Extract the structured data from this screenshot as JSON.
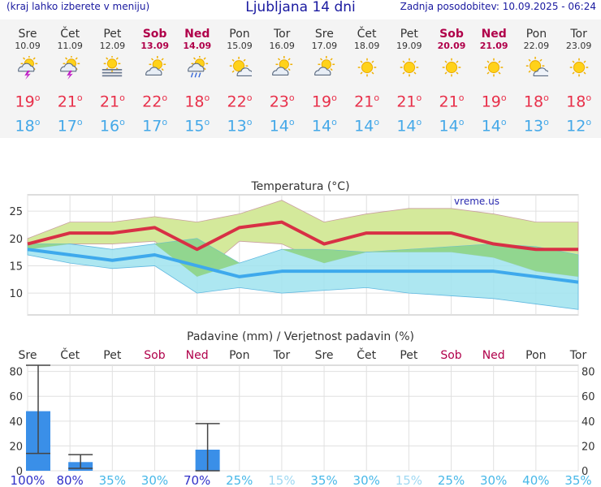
{
  "header": {
    "menu_hint": "(kraj lahko izberete v meniju)",
    "title": "Ljubljana 14 dni",
    "updated": "Zadnja posodobitev: 10.09.2025 - 06:24"
  },
  "days": [
    {
      "name": "Sre",
      "date": "10.09",
      "weekend": false,
      "icon": "thunderstorm-icon",
      "tmax": "19",
      "tmin": "18"
    },
    {
      "name": "Čet",
      "date": "11.09",
      "weekend": false,
      "icon": "thunderstorm-icon",
      "tmax": "21",
      "tmin": "17"
    },
    {
      "name": "Pet",
      "date": "12.09",
      "weekend": false,
      "icon": "fog-icon",
      "tmax": "21",
      "tmin": "16"
    },
    {
      "name": "Sob",
      "date": "13.09",
      "weekend": true,
      "icon": "partly-cloudy-icon",
      "tmax": "22",
      "tmin": "17"
    },
    {
      "name": "Ned",
      "date": "14.09",
      "weekend": true,
      "icon": "showers-icon",
      "tmax": "18",
      "tmin": "15"
    },
    {
      "name": "Pon",
      "date": "15.09",
      "weekend": false,
      "icon": "mostly-sunny-icon",
      "tmax": "22",
      "tmin": "13"
    },
    {
      "name": "Tor",
      "date": "16.09",
      "weekend": false,
      "icon": "partly-cloudy-icon",
      "tmax": "23",
      "tmin": "14"
    },
    {
      "name": "Sre",
      "date": "17.09",
      "weekend": false,
      "icon": "partly-cloudy-icon",
      "tmax": "19",
      "tmin": "14"
    },
    {
      "name": "Čet",
      "date": "18.09",
      "weekend": false,
      "icon": "sunny-icon",
      "tmax": "21",
      "tmin": "14"
    },
    {
      "name": "Pet",
      "date": "19.09",
      "weekend": false,
      "icon": "sunny-icon",
      "tmax": "21",
      "tmin": "14"
    },
    {
      "name": "Sob",
      "date": "20.09",
      "weekend": true,
      "icon": "sunny-icon",
      "tmax": "21",
      "tmin": "14"
    },
    {
      "name": "Ned",
      "date": "21.09",
      "weekend": true,
      "icon": "sunny-icon",
      "tmax": "19",
      "tmin": "14"
    },
    {
      "name": "Pon",
      "date": "22.09",
      "weekend": false,
      "icon": "mostly-sunny-icon",
      "tmax": "18",
      "tmin": "13"
    },
    {
      "name": "Tor",
      "date": "23.09",
      "weekend": false,
      "icon": "sunny-icon",
      "tmax": "18",
      "tmin": "12"
    }
  ],
  "colors": {
    "max_line": "#d83045",
    "min_line": "#3ea9ec",
    "max_band": "#d4e99b",
    "min_band": "#9fe3ef",
    "overlap_band": "#8fd486",
    "precip_bar": "#3a8fe8",
    "weekend_text": "#b0004a"
  },
  "chart_data": [
    {
      "type": "line",
      "title": "Temperatura (°C)",
      "watermark": "vreme.us",
      "xlim": [
        0,
        13
      ],
      "ylim": [
        6,
        28
      ],
      "yticks": [
        10,
        15,
        20,
        25
      ],
      "grid": true,
      "series": [
        {
          "role": "max",
          "values": [
            19,
            21,
            21,
            22,
            18,
            22,
            23,
            19,
            21,
            21,
            21,
            19,
            18,
            18
          ]
        },
        {
          "role": "min",
          "values": [
            18,
            17,
            16,
            17,
            15,
            13,
            14,
            14,
            14,
            14,
            14,
            14,
            13,
            12
          ]
        }
      ],
      "bands": [
        {
          "role": "max-range",
          "upper": [
            20,
            23,
            23,
            24,
            23,
            24.5,
            27,
            23,
            24.5,
            25.5,
            25.5,
            24.5,
            23,
            23
          ],
          "lower": [
            18,
            19,
            19,
            19.5,
            13,
            19.5,
            19,
            15.5,
            17.5,
            17.5,
            17.5,
            16.5,
            14,
            13
          ]
        },
        {
          "role": "min-range",
          "upper": [
            19,
            19,
            18,
            19,
            20,
            15.5,
            18,
            18,
            17.5,
            18,
            18.5,
            19,
            18.5,
            17
          ],
          "lower": [
            17,
            15.5,
            14.5,
            15,
            10,
            11,
            10,
            10.5,
            11,
            10,
            9.5,
            9,
            8,
            7
          ]
        }
      ]
    },
    {
      "type": "bar",
      "title": "Padavine (mm) / Verjetnost padavin (%)",
      "categories": [
        "Sre",
        "Čet",
        "Pet",
        "Sob",
        "Ned",
        "Pon",
        "Tor",
        "Sre",
        "Čet",
        "Pet",
        "Sob",
        "Ned",
        "Pon",
        "Tor"
      ],
      "weekend": [
        false,
        false,
        false,
        true,
        true,
        false,
        false,
        false,
        false,
        false,
        true,
        true,
        false,
        false
      ],
      "ylim": [
        0,
        85
      ],
      "yticks": [
        0,
        20,
        40,
        60,
        80
      ],
      "values": [
        48,
        7,
        0,
        0,
        17,
        0,
        0,
        0,
        0,
        0,
        0,
        0,
        0,
        0
      ],
      "error_high": [
        85,
        13,
        0,
        0,
        38,
        0,
        0,
        0,
        0,
        0,
        0,
        0,
        0,
        0
      ],
      "error_low": [
        14,
        2,
        0,
        0,
        0,
        0,
        0,
        0,
        0,
        0,
        0,
        0,
        0,
        0
      ],
      "probability": [
        "100%",
        "80%",
        "35%",
        "30%",
        "70%",
        "25%",
        "15%",
        "35%",
        "30%",
        "15%",
        "25%",
        "30%",
        "40%",
        "35%"
      ],
      "probability_colors": [
        "#3030c8",
        "#3030c8",
        "#48b8e8",
        "#48b8e8",
        "#3030c8",
        "#48b8e8",
        "#9fd8f2",
        "#48b8e8",
        "#48b8e8",
        "#9fd8f2",
        "#48b8e8",
        "#48b8e8",
        "#48b8e8",
        "#48b8e8"
      ]
    }
  ]
}
